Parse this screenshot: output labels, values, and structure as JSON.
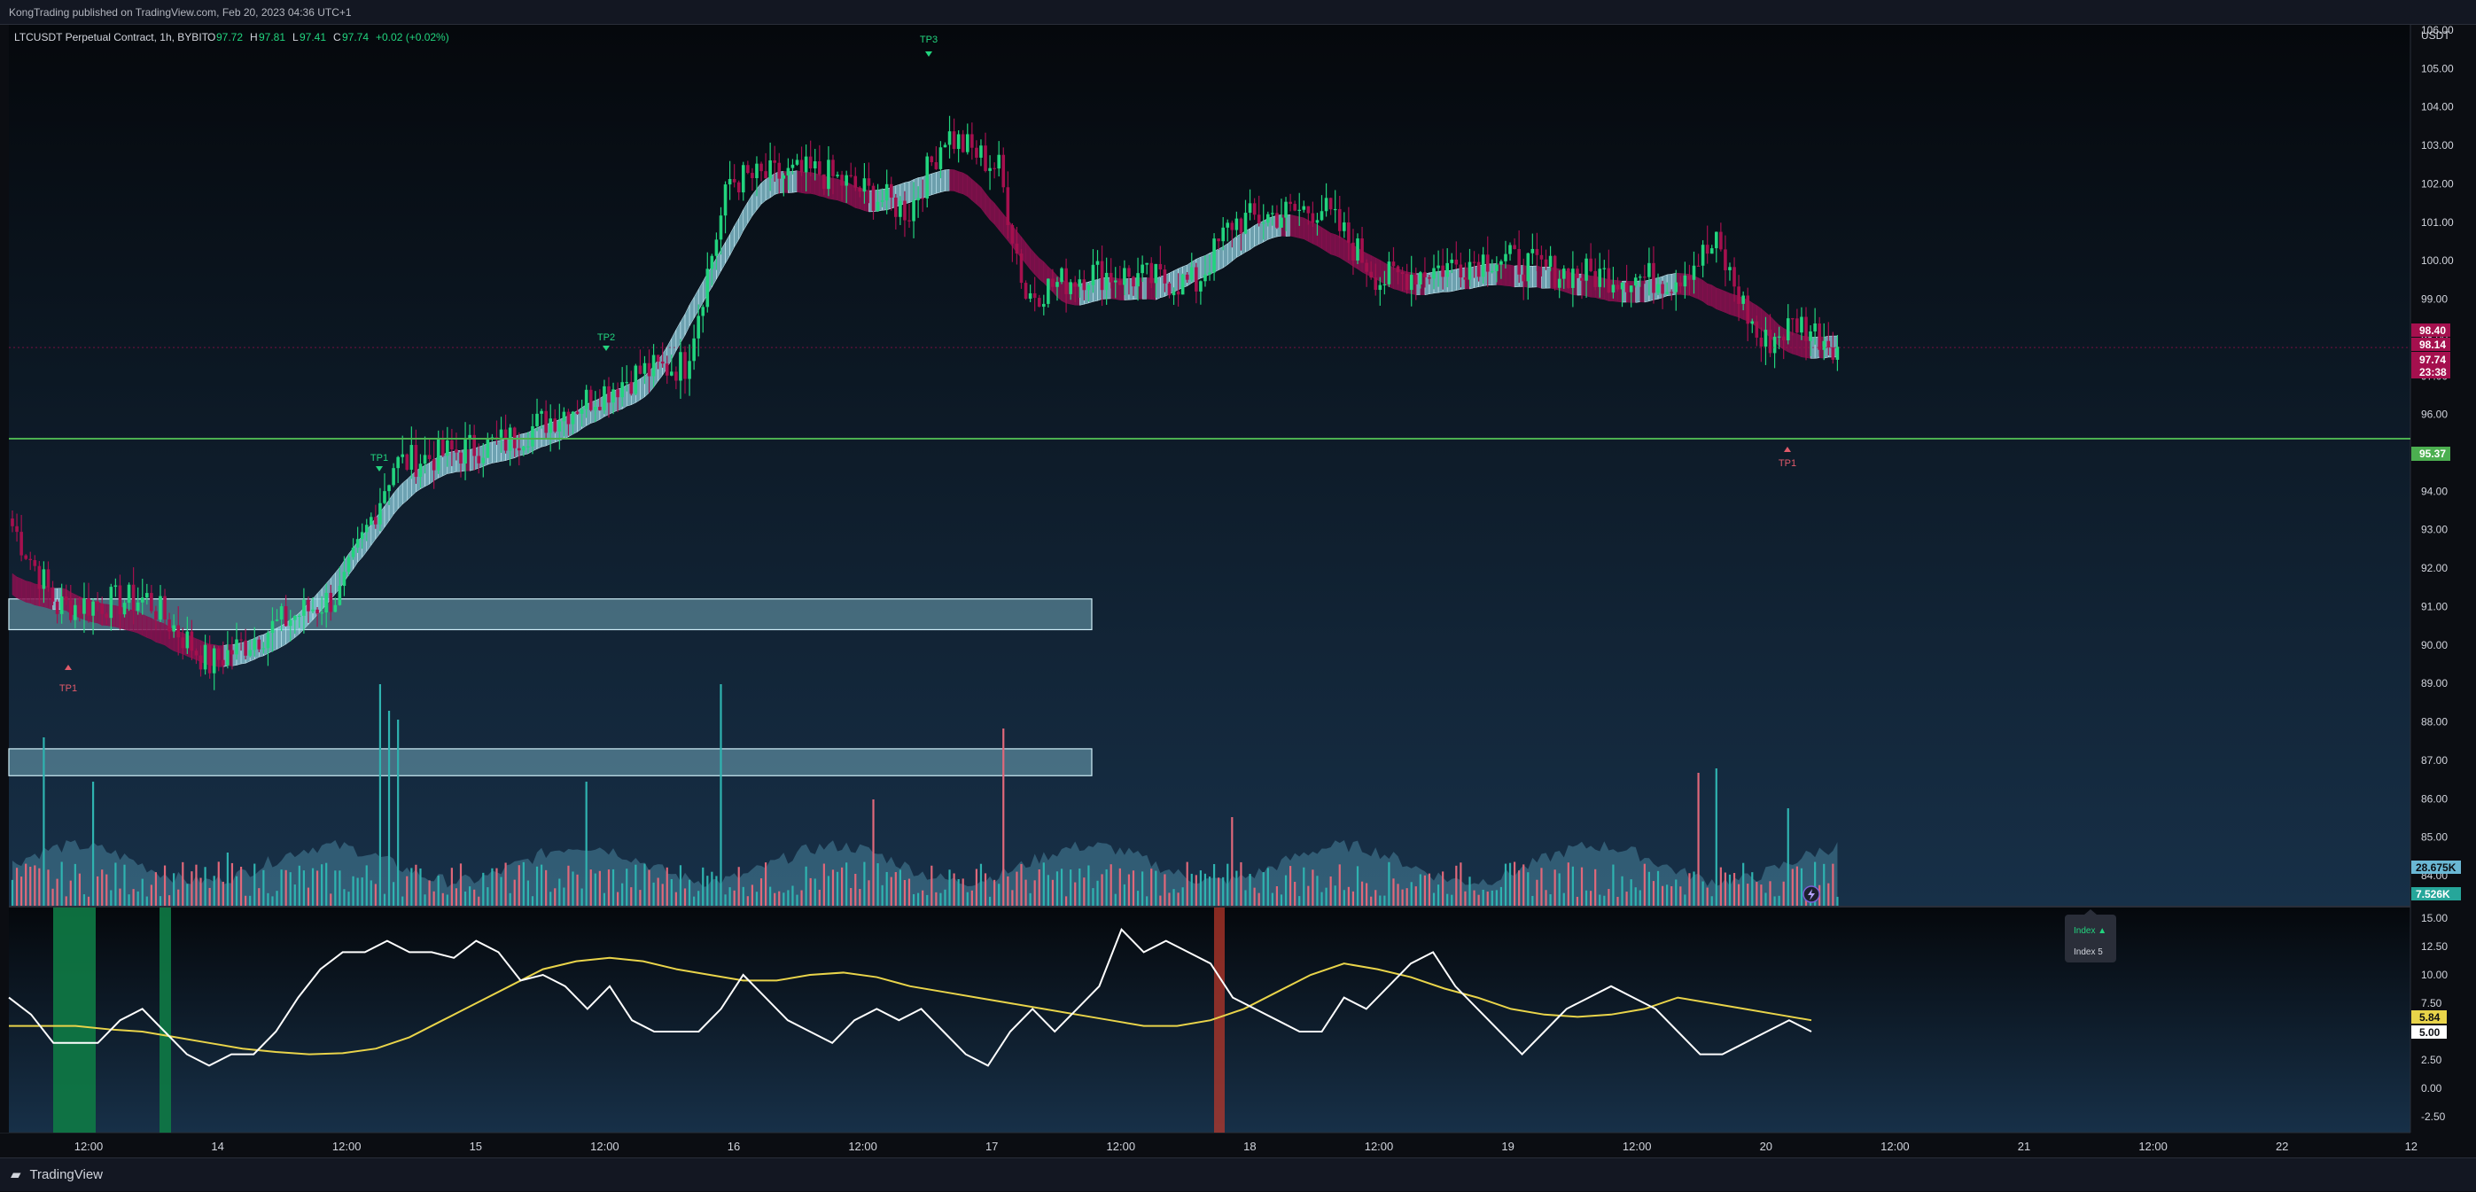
{
  "header": {
    "published": "KongTrading published on TradingView.com, Feb 20, 2023 04:36 UTC+1"
  },
  "symbol": {
    "name": "LTCUSDT Perpetual Contract, 1h, BYBIT",
    "open_label": "O",
    "open": "97.72",
    "high_label": "H",
    "high": "97.81",
    "low_label": "L",
    "low": "97.41",
    "close_label": "C",
    "close": "97.74",
    "change": "+0.02 (+0.02%)"
  },
  "axis": {
    "currency": "USDT",
    "price_ticks": [
      "106.00",
      "105.00",
      "104.00",
      "103.00",
      "102.00",
      "101.00",
      "100.00",
      "99.00",
      "98.00",
      "97.00",
      "96.00",
      "95.00",
      "94.00",
      "93.00",
      "92.00",
      "91.00",
      "90.00",
      "89.00",
      "88.00",
      "87.00",
      "86.00",
      "85.00",
      "84.00"
    ],
    "osc_ticks": [
      "15.00",
      "12.50",
      "10.00",
      "7.50",
      "5.00",
      "2.50",
      "0.00",
      "-2.50"
    ],
    "time_ticks": [
      "12:00",
      "14",
      "12:00",
      "15",
      "12:00",
      "16",
      "12:00",
      "17",
      "12:00",
      "18",
      "12:00",
      "19",
      "12:00",
      "20",
      "12:00",
      "21",
      "12:00",
      "22",
      "12"
    ]
  },
  "price_badges": {
    "b1": "98.40",
    "b2": "98.14",
    "b3": "97.74",
    "countdown": "23:38",
    "support": "95.37",
    "vol_ma": "28.675K",
    "vol": "7.526K",
    "osc1": "5.84",
    "osc2": "5.00"
  },
  "labels": {
    "tp1_a": "TP1",
    "tp1_b": "TP1",
    "tp2": "TP2",
    "tp3": "TP3",
    "tp1_c": "TP1"
  },
  "legend_box": {
    "line1": "Index ▲",
    "line2": "Index 5"
  },
  "footer": {
    "brand": "TradingView"
  },
  "colors": {
    "up": "#22d47e",
    "down": "#a5104e",
    "band_up": "#8fd0e0",
    "band_down": "#8a1050",
    "support": "#4caf50",
    "osc_white": "#ffffff",
    "osc_yellow": "#e9d44a"
  },
  "chart_data": [
    {
      "type": "candlestick",
      "title": "LTCUSDT Perpetual Contract, 1h, BYBIT",
      "ylabel": "USDT",
      "ylim": [
        83.5,
        106.5
      ],
      "x_range": [
        "Feb 13 06:00",
        "Feb 22 12:00"
      ],
      "candles_step_hours": 1,
      "segments": [
        {
          "from_x": 0,
          "to_x": 10,
          "start": 93.1,
          "end": 91.0
        },
        {
          "from_x": 10,
          "to_x": 30,
          "start": 91.0,
          "end": 91.2
        },
        {
          "from_x": 30,
          "to_x": 44,
          "start": 91.2,
          "end": 89.5
        },
        {
          "from_x": 44,
          "to_x": 60,
          "start": 89.5,
          "end": 90.6
        },
        {
          "from_x": 60,
          "to_x": 73,
          "start": 90.6,
          "end": 91.3
        },
        {
          "from_x": 73,
          "to_x": 85,
          "start": 91.3,
          "end": 94.7
        },
        {
          "from_x": 85,
          "to_x": 110,
          "start": 94.7,
          "end": 95.3
        },
        {
          "from_x": 110,
          "to_x": 140,
          "start": 95.3,
          "end": 97.1
        },
        {
          "from_x": 140,
          "to_x": 150,
          "start": 97.1,
          "end": 97.3
        },
        {
          "from_x": 150,
          "to_x": 160,
          "start": 97.3,
          "end": 102.1
        },
        {
          "from_x": 160,
          "to_x": 180,
          "start": 102.1,
          "end": 102.3
        },
        {
          "from_x": 180,
          "to_x": 200,
          "start": 102.3,
          "end": 101.3
        },
        {
          "from_x": 200,
          "to_x": 208,
          "start": 101.3,
          "end": 103.3
        },
        {
          "from_x": 208,
          "to_x": 220,
          "start": 103.3,
          "end": 102.4
        },
        {
          "from_x": 220,
          "to_x": 226,
          "start": 102.4,
          "end": 99.1
        },
        {
          "from_x": 226,
          "to_x": 240,
          "start": 99.1,
          "end": 99.7
        },
        {
          "from_x": 240,
          "to_x": 264,
          "start": 99.7,
          "end": 99.4
        },
        {
          "from_x": 264,
          "to_x": 272,
          "start": 99.4,
          "end": 101.0
        },
        {
          "from_x": 272,
          "to_x": 292,
          "start": 101.0,
          "end": 101.4
        },
        {
          "from_x": 292,
          "to_x": 305,
          "start": 101.4,
          "end": 99.5
        },
        {
          "from_x": 305,
          "to_x": 330,
          "start": 99.5,
          "end": 100.1
        },
        {
          "from_x": 330,
          "to_x": 345,
          "start": 100.1,
          "end": 99.7
        },
        {
          "from_x": 345,
          "to_x": 370,
          "start": 99.7,
          "end": 99.5
        },
        {
          "from_x": 370,
          "to_x": 380,
          "start": 99.5,
          "end": 100.4
        },
        {
          "from_x": 380,
          "to_x": 390,
          "start": 100.4,
          "end": 97.8
        },
        {
          "from_x": 390,
          "to_x": 398,
          "start": 97.8,
          "end": 98.4
        },
        {
          "from_x": 398,
          "to_x": 408,
          "start": 98.4,
          "end": 97.74
        }
      ],
      "support_level": 95.37,
      "zones": [
        {
          "low": 90.4,
          "high": 91.2,
          "x_end_time": "Feb 17 ~02:00"
        },
        {
          "low": 86.6,
          "high": 87.3,
          "x_end_time": "Feb 17 ~02:00"
        }
      ]
    },
    {
      "type": "line",
      "title": "Oscillator",
      "ylim": [
        -3.5,
        16
      ],
      "series": [
        {
          "values": [
            8,
            6.5,
            4,
            4,
            4,
            6,
            7,
            5,
            3,
            2,
            3,
            3,
            5,
            8,
            10.5,
            12,
            12,
            13,
            12,
            12,
            11.5,
            13,
            12,
            9.5,
            10,
            9,
            7,
            9,
            6,
            5,
            5,
            5,
            7,
            10,
            8,
            6,
            5,
            4,
            6,
            7,
            6,
            7,
            5,
            3,
            2,
            5,
            7,
            5,
            7,
            9,
            14,
            12,
            13,
            12,
            11,
            8,
            7,
            6,
            5,
            5,
            8,
            7,
            9,
            11,
            12,
            9,
            7,
            5,
            3,
            5,
            7,
            8,
            9,
            8,
            7,
            5,
            3,
            3,
            4,
            5,
            6,
            5
          ]
        },
        {
          "values": [
            5.5,
            5.5,
            5.5,
            5.2,
            5,
            4.5,
            4,
            3.5,
            3.2,
            3,
            3.1,
            3.5,
            4.5,
            6,
            7.5,
            9,
            10.5,
            11.2,
            11.5,
            11.2,
            10.5,
            10,
            9.5,
            9.5,
            10,
            10.2,
            9.8,
            9,
            8.5,
            8,
            7.5,
            7,
            6.5,
            6,
            5.5,
            5.5,
            6,
            7,
            8.5,
            10,
            11,
            10.5,
            9.8,
            8.8,
            8,
            7,
            6.5,
            6.3,
            6.5,
            7,
            8,
            7.5,
            7,
            6.5,
            6
          ]
        }
      ]
    }
  ]
}
